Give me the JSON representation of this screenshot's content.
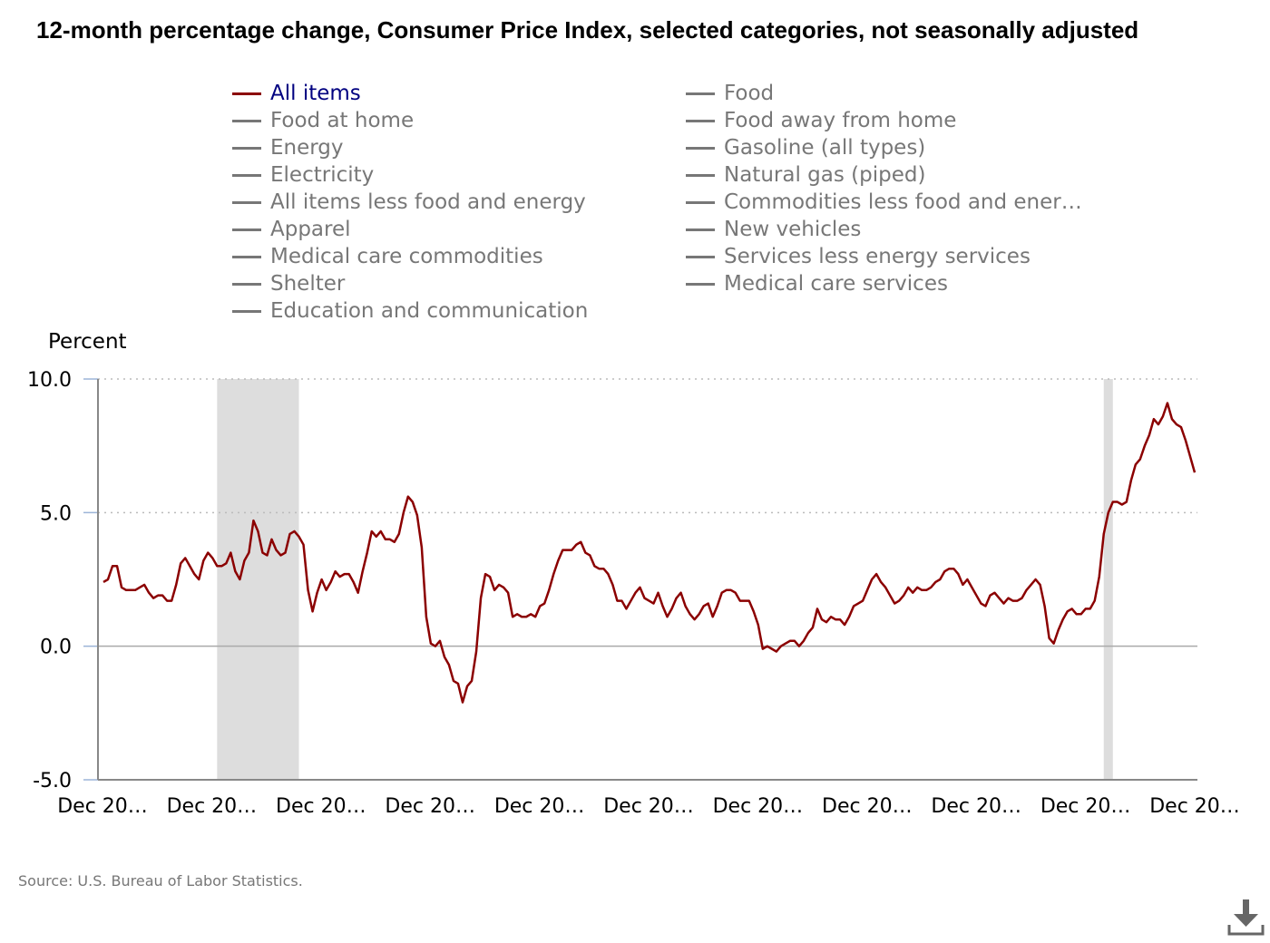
{
  "chart_data": {
    "type": "line",
    "title": "12-month percentage change, Consumer Price Index, selected categories, not seasonally adjusted",
    "ylabel": "Percent",
    "xlabel": "",
    "ylim": [
      -5.0,
      10.0
    ],
    "y_ticks": [
      "10.0",
      "5.0",
      "0.0",
      "-5.0"
    ],
    "x_tick_labels": [
      "Dec 20…",
      "Dec 20…",
      "Dec 20…",
      "Dec 20…",
      "Dec 20…",
      "Dec 20…",
      "Dec 20…",
      "Dec 20…",
      "Dec 20…",
      "Dec 20…",
      "Dec 20…"
    ],
    "grid": "horizontal dotted",
    "legend_position": "top",
    "active_color": "#8b0000",
    "inactive_color": "#777777",
    "recession_color": "#dddddd",
    "legend": [
      {
        "label": "All items",
        "active": true
      },
      {
        "label": "Food at home",
        "active": false
      },
      {
        "label": "Energy",
        "active": false
      },
      {
        "label": "Electricity",
        "active": false
      },
      {
        "label": "All items less food and energy",
        "active": false
      },
      {
        "label": "Apparel",
        "active": false
      },
      {
        "label": "Medical care commodities",
        "active": false
      },
      {
        "label": "Shelter",
        "active": false
      },
      {
        "label": "Education and communication",
        "active": false
      },
      {
        "label": "Food",
        "active": false
      },
      {
        "label": "Food away from home",
        "active": false
      },
      {
        "label": "Gasoline (all types)",
        "active": false
      },
      {
        "label": "Natural gas (piped)",
        "active": false
      },
      {
        "label": "Commodities less food and ener…",
        "active": false
      },
      {
        "label": "New vehicles",
        "active": false
      },
      {
        "label": "Services less energy services",
        "active": false
      },
      {
        "label": "Medical care services",
        "active": false
      }
    ],
    "recession_shading_month_index": [
      [
        25,
        43
      ],
      [
        220,
        222
      ]
    ],
    "series": [
      {
        "name": "All items",
        "values": [
          2.4,
          2.5,
          3.0,
          3.0,
          2.2,
          2.1,
          2.1,
          2.1,
          2.2,
          2.3,
          2.0,
          1.8,
          1.9,
          1.9,
          1.7,
          1.7,
          2.3,
          3.1,
          3.3,
          3.0,
          2.7,
          2.5,
          3.2,
          3.5,
          3.3,
          3.0,
          3.0,
          3.1,
          3.5,
          2.8,
          2.5,
          3.2,
          3.5,
          4.7,
          4.3,
          3.5,
          3.4,
          4.0,
          3.6,
          3.4,
          3.5,
          4.2,
          4.3,
          4.1,
          3.8,
          2.1,
          1.3,
          2.0,
          2.5,
          2.1,
          2.4,
          2.8,
          2.6,
          2.7,
          2.7,
          2.4,
          2.0,
          2.8,
          3.5,
          4.3,
          4.1,
          4.3,
          4.0,
          4.0,
          3.9,
          4.2,
          5.0,
          5.6,
          5.4,
          4.9,
          3.7,
          1.1,
          0.1,
          0.0,
          0.2,
          -0.4,
          -0.7,
          -1.3,
          -1.4,
          -2.1,
          -1.5,
          -1.3,
          -0.2,
          1.8,
          2.7,
          2.6,
          2.1,
          2.3,
          2.2,
          2.0,
          1.1,
          1.2,
          1.1,
          1.1,
          1.2,
          1.1,
          1.5,
          1.6,
          2.1,
          2.7,
          3.2,
          3.6,
          3.6,
          3.6,
          3.8,
          3.9,
          3.5,
          3.4,
          3.0,
          2.9,
          2.9,
          2.7,
          2.3,
          1.7,
          1.7,
          1.4,
          1.7,
          2.0,
          2.2,
          1.8,
          1.7,
          1.6,
          2.0,
          1.5,
          1.1,
          1.4,
          1.8,
          2.0,
          1.5,
          1.2,
          1.0,
          1.2,
          1.5,
          1.6,
          1.1,
          1.5,
          2.0,
          2.1,
          2.1,
          2.0,
          1.7,
          1.7,
          1.7,
          1.3,
          0.8,
          -0.1,
          0.0,
          -0.1,
          -0.2,
          0.0,
          0.1,
          0.2,
          0.2,
          0.0,
          0.2,
          0.5,
          0.7,
          1.4,
          1.0,
          0.9,
          1.1,
          1.0,
          1.0,
          0.8,
          1.1,
          1.5,
          1.6,
          1.7,
          2.1,
          2.5,
          2.7,
          2.4,
          2.2,
          1.9,
          1.6,
          1.7,
          1.9,
          2.2,
          2.0,
          2.2,
          2.1,
          2.1,
          2.2,
          2.4,
          2.5,
          2.8,
          2.9,
          2.9,
          2.7,
          2.3,
          2.5,
          2.2,
          1.9,
          1.6,
          1.5,
          1.9,
          2.0,
          1.8,
          1.6,
          1.8,
          1.7,
          1.7,
          1.8,
          2.1,
          2.3,
          2.5,
          2.3,
          1.5,
          0.3,
          0.1,
          0.6,
          1.0,
          1.3,
          1.4,
          1.2,
          1.2,
          1.4,
          1.4,
          1.7,
          2.6,
          4.2,
          5.0,
          5.4,
          5.4,
          5.3,
          5.4,
          6.2,
          6.8,
          7.0,
          7.5,
          7.9,
          8.5,
          8.3,
          8.6,
          9.1,
          8.5,
          8.3,
          8.2,
          7.7,
          7.1,
          6.5
        ]
      }
    ]
  },
  "source": "Source: U.S. Bureau of Labor Statistics.",
  "download_icon": "download-icon"
}
